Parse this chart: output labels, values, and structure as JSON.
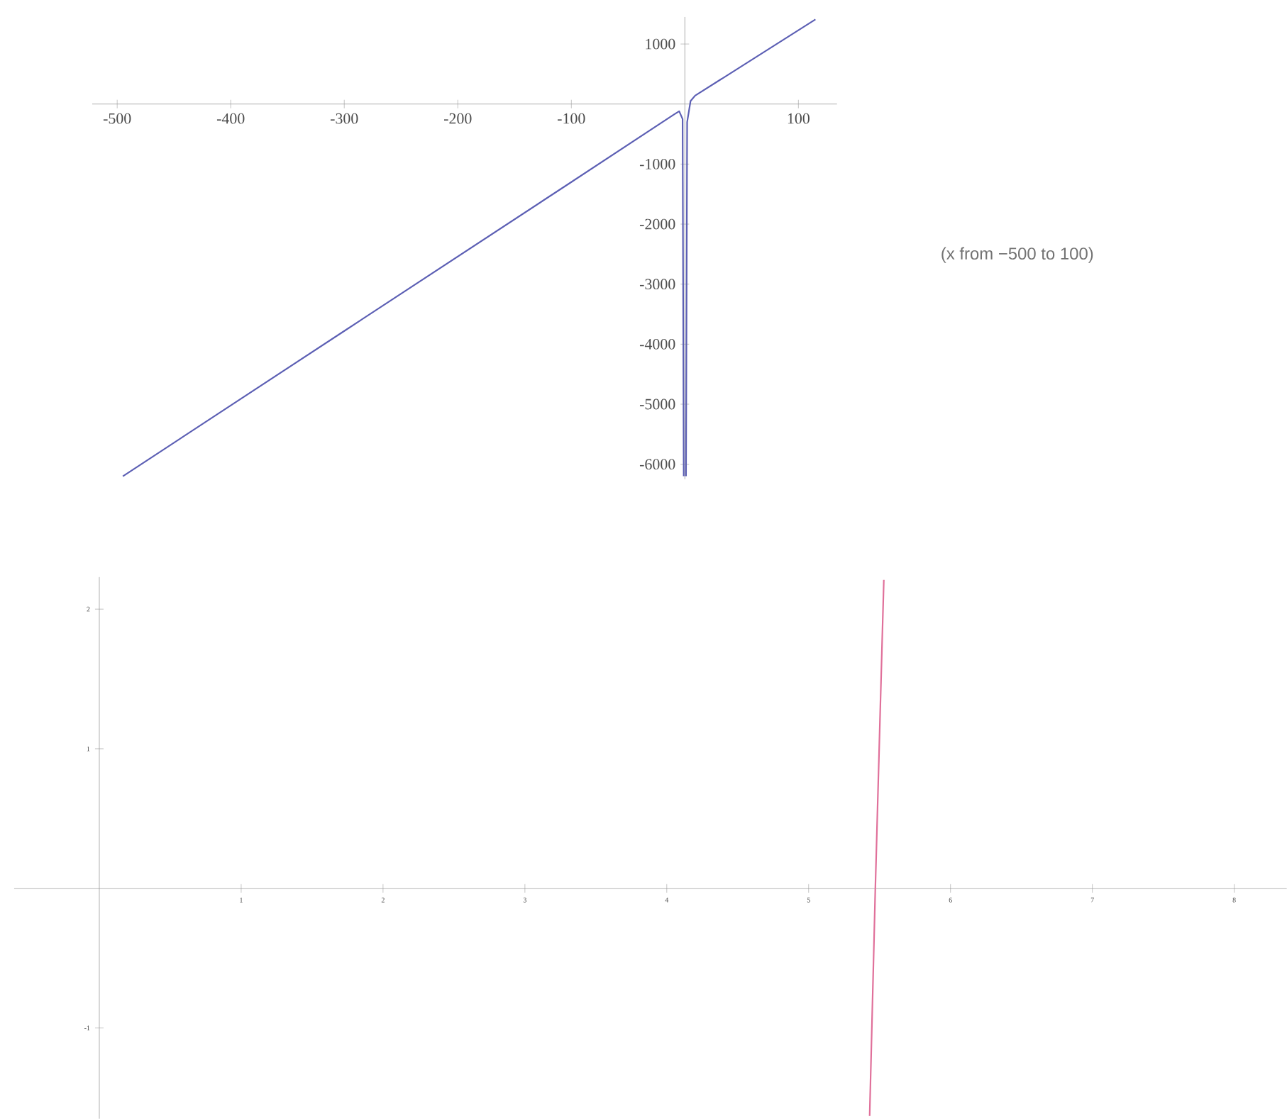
{
  "chart_data": [
    {
      "type": "line",
      "xlim": [
        -522,
        134
      ],
      "ylim": [
        -6250,
        1450
      ],
      "xticks": [
        -500,
        -400,
        -300,
        -200,
        -100,
        100
      ],
      "yticks": [
        -6000,
        -5000,
        -4000,
        -3000,
        -2000,
        -1000,
        1000
      ],
      "grid": false,
      "marker": "none",
      "line_style": "solid",
      "annotations": [
        "(x  from −500 to 100)"
      ],
      "series": [
        {
          "color": "#5c5fb4",
          "x": [
            -495,
            -300,
            -100,
            -10,
            -5,
            -2,
            -1
          ],
          "values": [
            -6200,
            -3780,
            -1300,
            -180,
            -120,
            -250,
            -6200
          ]
        },
        {
          "color": "#5c5fb4",
          "x": [
            1,
            2,
            5,
            9,
            50,
            115
          ],
          "values": [
            -6200,
            -300,
            50,
            140,
            630,
            1410
          ]
        }
      ]
    },
    {
      "type": "line",
      "xlim": [
        -0.6,
        8.37
      ],
      "ylim": [
        -1.65,
        2.23
      ],
      "xticks": [
        1,
        2,
        3,
        4,
        5,
        6,
        7,
        8
      ],
      "yticks": [
        -1,
        1,
        2
      ],
      "grid": false,
      "marker": "none",
      "line_style": "solid",
      "series": [
        {
          "color": "#e0709a",
          "x": [
            5.43,
            5.47,
            5.53
          ],
          "values": [
            -1.63,
            0,
            2.21
          ]
        }
      ]
    }
  ]
}
